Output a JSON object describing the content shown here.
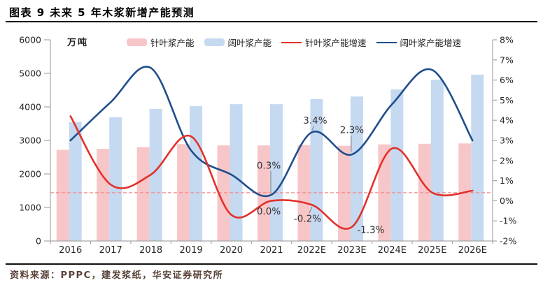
{
  "header": {
    "title": "图表 9 未来 5 年木浆新增产能预测"
  },
  "footer": {
    "source": "资料来源：PPPC，建发浆纸，华安证券研究所"
  },
  "chart_data": {
    "type": "combo-bar-line",
    "title": "未来 5 年木浆新增产能预测",
    "unit_label": "万吨",
    "categories": [
      "2016",
      "2017",
      "2018",
      "2019",
      "2020",
      "2021",
      "2022E",
      "2023E",
      "2024E",
      "2025E",
      "2026E"
    ],
    "bar_series": [
      {
        "name": "针叶浆产能",
        "type": "bar",
        "axis": "left",
        "color": "#f7c6c9",
        "values": [
          2720,
          2750,
          2800,
          2890,
          2850,
          2850,
          2860,
          2840,
          2880,
          2900,
          2910
        ]
      },
      {
        "name": "阔叶浆产能",
        "type": "bar",
        "axis": "left",
        "color": "#c5d9f1",
        "values": [
          3550,
          3690,
          3940,
          4020,
          4080,
          4080,
          4230,
          4310,
          4520,
          4810,
          4960
        ]
      }
    ],
    "line_series": [
      {
        "name": "针叶浆产能增速",
        "type": "line",
        "axis": "right",
        "color": "#e2312b",
        "values_pct": [
          4.2,
          0.8,
          1.3,
          3.2,
          -0.7,
          0.0,
          -0.2,
          -1.3,
          2.6,
          0.4,
          0.5
        ]
      },
      {
        "name": "阔叶浆产能增速",
        "type": "line",
        "axis": "right",
        "color": "#1f4e8c",
        "values_pct": [
          3.0,
          4.9,
          6.6,
          2.5,
          1.3,
          0.3,
          3.4,
          2.3,
          4.8,
          6.5,
          3.0
        ]
      }
    ],
    "left_axis": {
      "min": 0,
      "max": 6000,
      "step": 1000,
      "ticks": [
        "0",
        "1000",
        "2000",
        "3000",
        "4000",
        "5000",
        "6000"
      ]
    },
    "right_axis": {
      "min": -2,
      "max": 8,
      "step": 1,
      "ticks": [
        "-2%",
        "-1%",
        "0%",
        "1%",
        "2%",
        "3%",
        "4%",
        "5%",
        "6%",
        "7%",
        "8%"
      ]
    },
    "reference_line": {
      "value_pct": 0.4,
      "style": "dashed",
      "color": "#f08a8a"
    },
    "annotations": [
      {
        "label": "0.3%",
        "series": "阔叶浆产能增速",
        "category": "2021",
        "value_pct": 0.3
      },
      {
        "label": "0.0%",
        "series": "针叶浆产能增速",
        "category": "2021",
        "value_pct": 0.0
      },
      {
        "label": "3.4%",
        "series": "阔叶浆产能增速",
        "category": "2022E",
        "value_pct": 3.4
      },
      {
        "label": "-0.2%",
        "series": "针叶浆产能增速",
        "category": "2022E",
        "value_pct": -0.2
      },
      {
        "label": "2.3%",
        "series": "阔叶浆产能增速",
        "category": "2023E",
        "value_pct": 2.3
      },
      {
        "label": "-1.3%",
        "series": "针叶浆产能增速",
        "category": "2023E",
        "value_pct": -1.3
      }
    ],
    "legend": {
      "position": "top",
      "items": [
        "针叶浆产能",
        "阔叶浆产能",
        "针叶浆产能增速",
        "阔叶浆产能增速"
      ]
    },
    "grid": "off",
    "colors": {
      "softwood_bar": "#f7c6c9",
      "hardwood_bar": "#c5d9f1",
      "softwood_line": "#e2312b",
      "hardwood_line": "#1f4e8c",
      "axis": "#a6a6a6",
      "labels": "#262626"
    }
  }
}
